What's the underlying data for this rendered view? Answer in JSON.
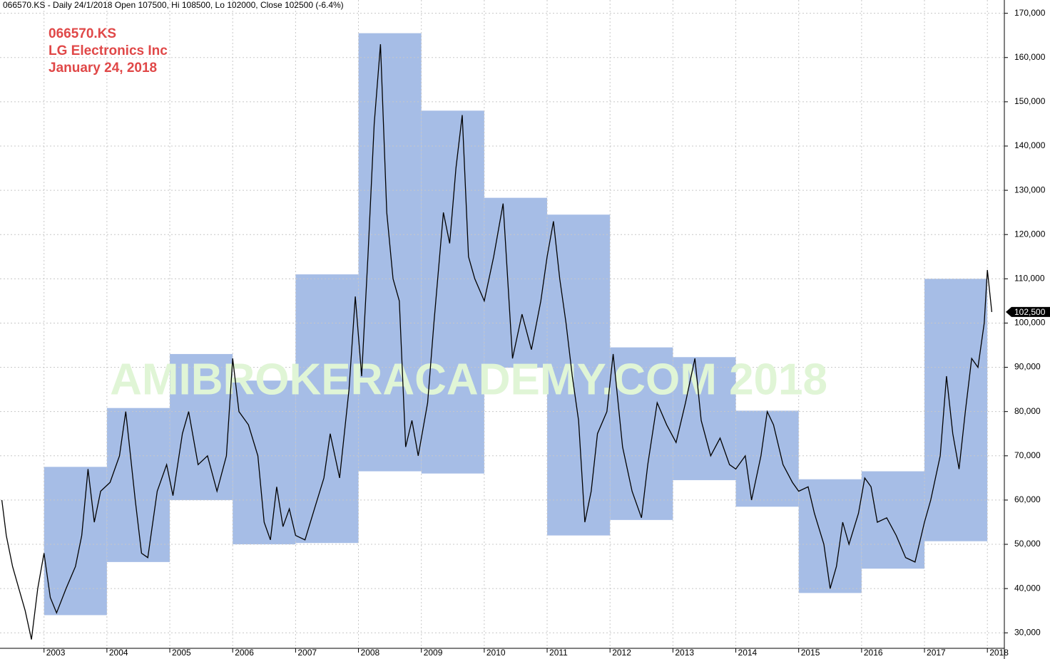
{
  "chart_data": {
    "type": "line",
    "header": "066570.KS - Daily 24/1/2018 Open 107500, Hi 108500, Lo 102000, Close 102500 (-6.4%)",
    "annotations": [
      "066570.KS",
      "LG Electronics Inc",
      "January 24, 2018"
    ],
    "watermark": "AMIBROKERACADEMY.COM  2018",
    "x": [
      2002.33,
      2002.4,
      2002.5,
      2002.6,
      2002.7,
      2002.8,
      2002.9,
      2003.0,
      2003.1,
      2003.2,
      2003.35,
      2003.5,
      2003.6,
      2003.7,
      2003.8,
      2003.9,
      2004.05,
      2004.2,
      2004.3,
      2004.45,
      2004.55,
      2004.65,
      2004.8,
      2004.95,
      2005.05,
      2005.2,
      2005.3,
      2005.45,
      2005.6,
      2005.75,
      2005.9,
      2006.0,
      2006.1,
      2006.25,
      2006.4,
      2006.5,
      2006.6,
      2006.7,
      2006.8,
      2006.9,
      2007.0,
      2007.15,
      2007.3,
      2007.45,
      2007.55,
      2007.7,
      2007.85,
      2007.95,
      2008.05,
      2008.15,
      2008.25,
      2008.35,
      2008.45,
      2008.55,
      2008.65,
      2008.75,
      2008.85,
      2008.95,
      2009.1,
      2009.2,
      2009.35,
      2009.45,
      2009.55,
      2009.65,
      2009.75,
      2009.85,
      2010.0,
      2010.15,
      2010.3,
      2010.45,
      2010.6,
      2010.75,
      2010.9,
      2011.0,
      2011.1,
      2011.2,
      2011.3,
      2011.4,
      2011.5,
      2011.6,
      2011.7,
      2011.8,
      2011.95,
      2012.05,
      2012.2,
      2012.35,
      2012.5,
      2012.6,
      2012.75,
      2012.9,
      2013.05,
      2013.2,
      2013.35,
      2013.45,
      2013.6,
      2013.75,
      2013.9,
      2014.0,
      2014.15,
      2014.25,
      2014.4,
      2014.5,
      2014.6,
      2014.75,
      2014.9,
      2015.0,
      2015.15,
      2015.25,
      2015.4,
      2015.5,
      2015.6,
      2015.7,
      2015.8,
      2015.95,
      2016.05,
      2016.15,
      2016.25,
      2016.4,
      2016.55,
      2016.7,
      2016.85,
      2017.0,
      2017.1,
      2017.25,
      2017.35,
      2017.45,
      2017.55,
      2017.65,
      2017.75,
      2017.85,
      2017.95,
      2018.0,
      2018.07
    ],
    "series": [
      {
        "name": "066570.KS",
        "color": "#000000",
        "values": [
          60000,
          52000,
          45000,
          40000,
          35000,
          28500,
          40000,
          48000,
          38000,
          34500,
          40000,
          45000,
          52000,
          67000,
          55000,
          62000,
          64000,
          70000,
          80000,
          60000,
          48000,
          47000,
          62000,
          68000,
          61000,
          75000,
          80000,
          68000,
          70000,
          62000,
          70000,
          92000,
          80000,
          77000,
          70000,
          55000,
          51000,
          63000,
          54000,
          58000,
          52000,
          51000,
          58000,
          65000,
          75000,
          65000,
          85000,
          106000,
          88000,
          115000,
          145000,
          163000,
          125000,
          110000,
          105000,
          72000,
          78000,
          70000,
          82000,
          100000,
          125000,
          118000,
          135000,
          147000,
          115000,
          110000,
          105000,
          115000,
          127000,
          92000,
          102000,
          94000,
          105000,
          115000,
          123000,
          110000,
          100000,
          88000,
          78000,
          55000,
          62000,
          75000,
          80000,
          93000,
          72000,
          62000,
          56000,
          68000,
          82000,
          77000,
          73000,
          82000,
          92000,
          78000,
          70000,
          74000,
          68000,
          67000,
          70000,
          60000,
          70000,
          80000,
          77000,
          68000,
          64000,
          62000,
          63000,
          57000,
          50000,
          40000,
          45000,
          55000,
          50000,
          57000,
          65000,
          63000,
          55000,
          56000,
          52000,
          47000,
          46000,
          55000,
          60000,
          70000,
          88000,
          75000,
          67000,
          80000,
          92000,
          90000,
          100000,
          112000,
          102500
        ]
      }
    ],
    "boxes": {
      "color": "#a6bde6",
      "lows": [
        34000,
        46000,
        60000,
        50000,
        50300,
        66500,
        66000,
        89900,
        52000,
        55500,
        64500,
        58500,
        39000,
        44500,
        50700
      ],
      "highs": [
        67500,
        80800,
        93000,
        87000,
        111000,
        165500,
        148000,
        128300,
        124500,
        94500,
        92300,
        80200,
        64700,
        66500,
        110000
      ]
    },
    "last_value": {
      "value": 102500,
      "label": "102,500"
    },
    "xlim": [
      2002.3,
      2018.27
    ],
    "xticks": [
      2003,
      2004,
      2005,
      2006,
      2007,
      2008,
      2009,
      2010,
      2011,
      2012,
      2013,
      2014,
      2015,
      2016,
      2017,
      2018
    ],
    "ylim": [
      26500,
      173000
    ],
    "yticks": [
      {
        "value": 30000,
        "label": "30,000"
      },
      {
        "value": 40000,
        "label": "40,000"
      },
      {
        "value": 50000,
        "label": "50,000"
      },
      {
        "value": 60000,
        "label": "60,000"
      },
      {
        "value": 70000,
        "label": "70,000"
      },
      {
        "value": 80000,
        "label": "80,000"
      },
      {
        "value": 90000,
        "label": "90,000"
      },
      {
        "value": 100000,
        "label": "100,000"
      },
      {
        "value": 110000,
        "label": "110,000"
      },
      {
        "value": 120000,
        "label": "120,000"
      },
      {
        "value": 130000,
        "label": "130,000"
      },
      {
        "value": 140000,
        "label": "140,000"
      },
      {
        "value": 150000,
        "label": "150,000"
      },
      {
        "value": 160000,
        "label": "160,000"
      },
      {
        "value": 170000,
        "label": "170,000"
      }
    ],
    "grid": true
  }
}
